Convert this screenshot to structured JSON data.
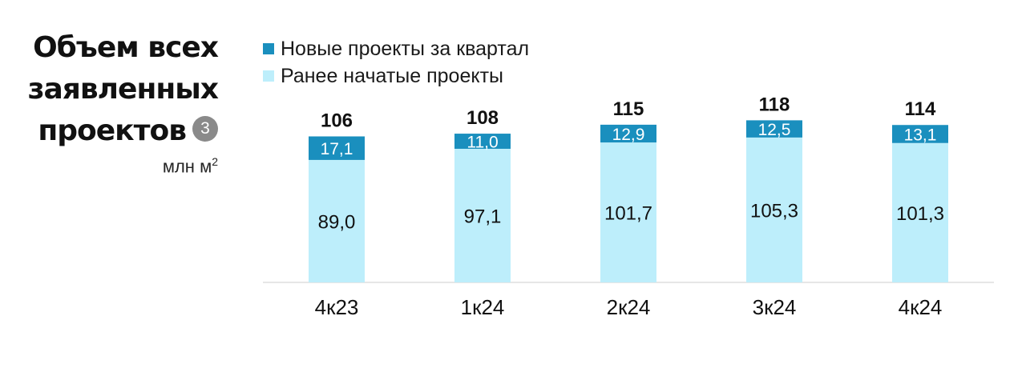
{
  "title": {
    "lines": [
      "Объем всех",
      "заявленных",
      "проектов"
    ],
    "note_marker": "3",
    "unit": "млн м",
    "unit_sup": "2"
  },
  "colors": {
    "new_projects": "#1a8fbe",
    "previous_projects": "#bdeefb",
    "baseline": "#e6e6e6"
  },
  "chart_data": {
    "type": "bar",
    "stacked": true,
    "categories": [
      "4к23",
      "1к24",
      "2к24",
      "3к24",
      "4к24"
    ],
    "series": [
      {
        "name": "Ранее начатые проекты",
        "values": [
          89.0,
          97.1,
          101.7,
          105.3,
          101.3
        ],
        "labels": [
          "89,0",
          "97,1",
          "101,7",
          "105,3",
          "101,3"
        ],
        "color": "#bdeefb"
      },
      {
        "name": "Новые проекты за квартал",
        "values": [
          17.1,
          11.0,
          12.9,
          12.5,
          13.1
        ],
        "labels": [
          "17,1",
          "11,0",
          "12,9",
          "12,5",
          "13,1"
        ],
        "color": "#1a8fbe"
      }
    ],
    "totals": [
      "106",
      "108",
      "115",
      "118",
      "114"
    ],
    "legend": [
      "Новые проекты за квартал",
      "Ранее начатые проекты"
    ],
    "legend_position": "top-left",
    "ylim": [
      0,
      118
    ],
    "grid": false
  }
}
